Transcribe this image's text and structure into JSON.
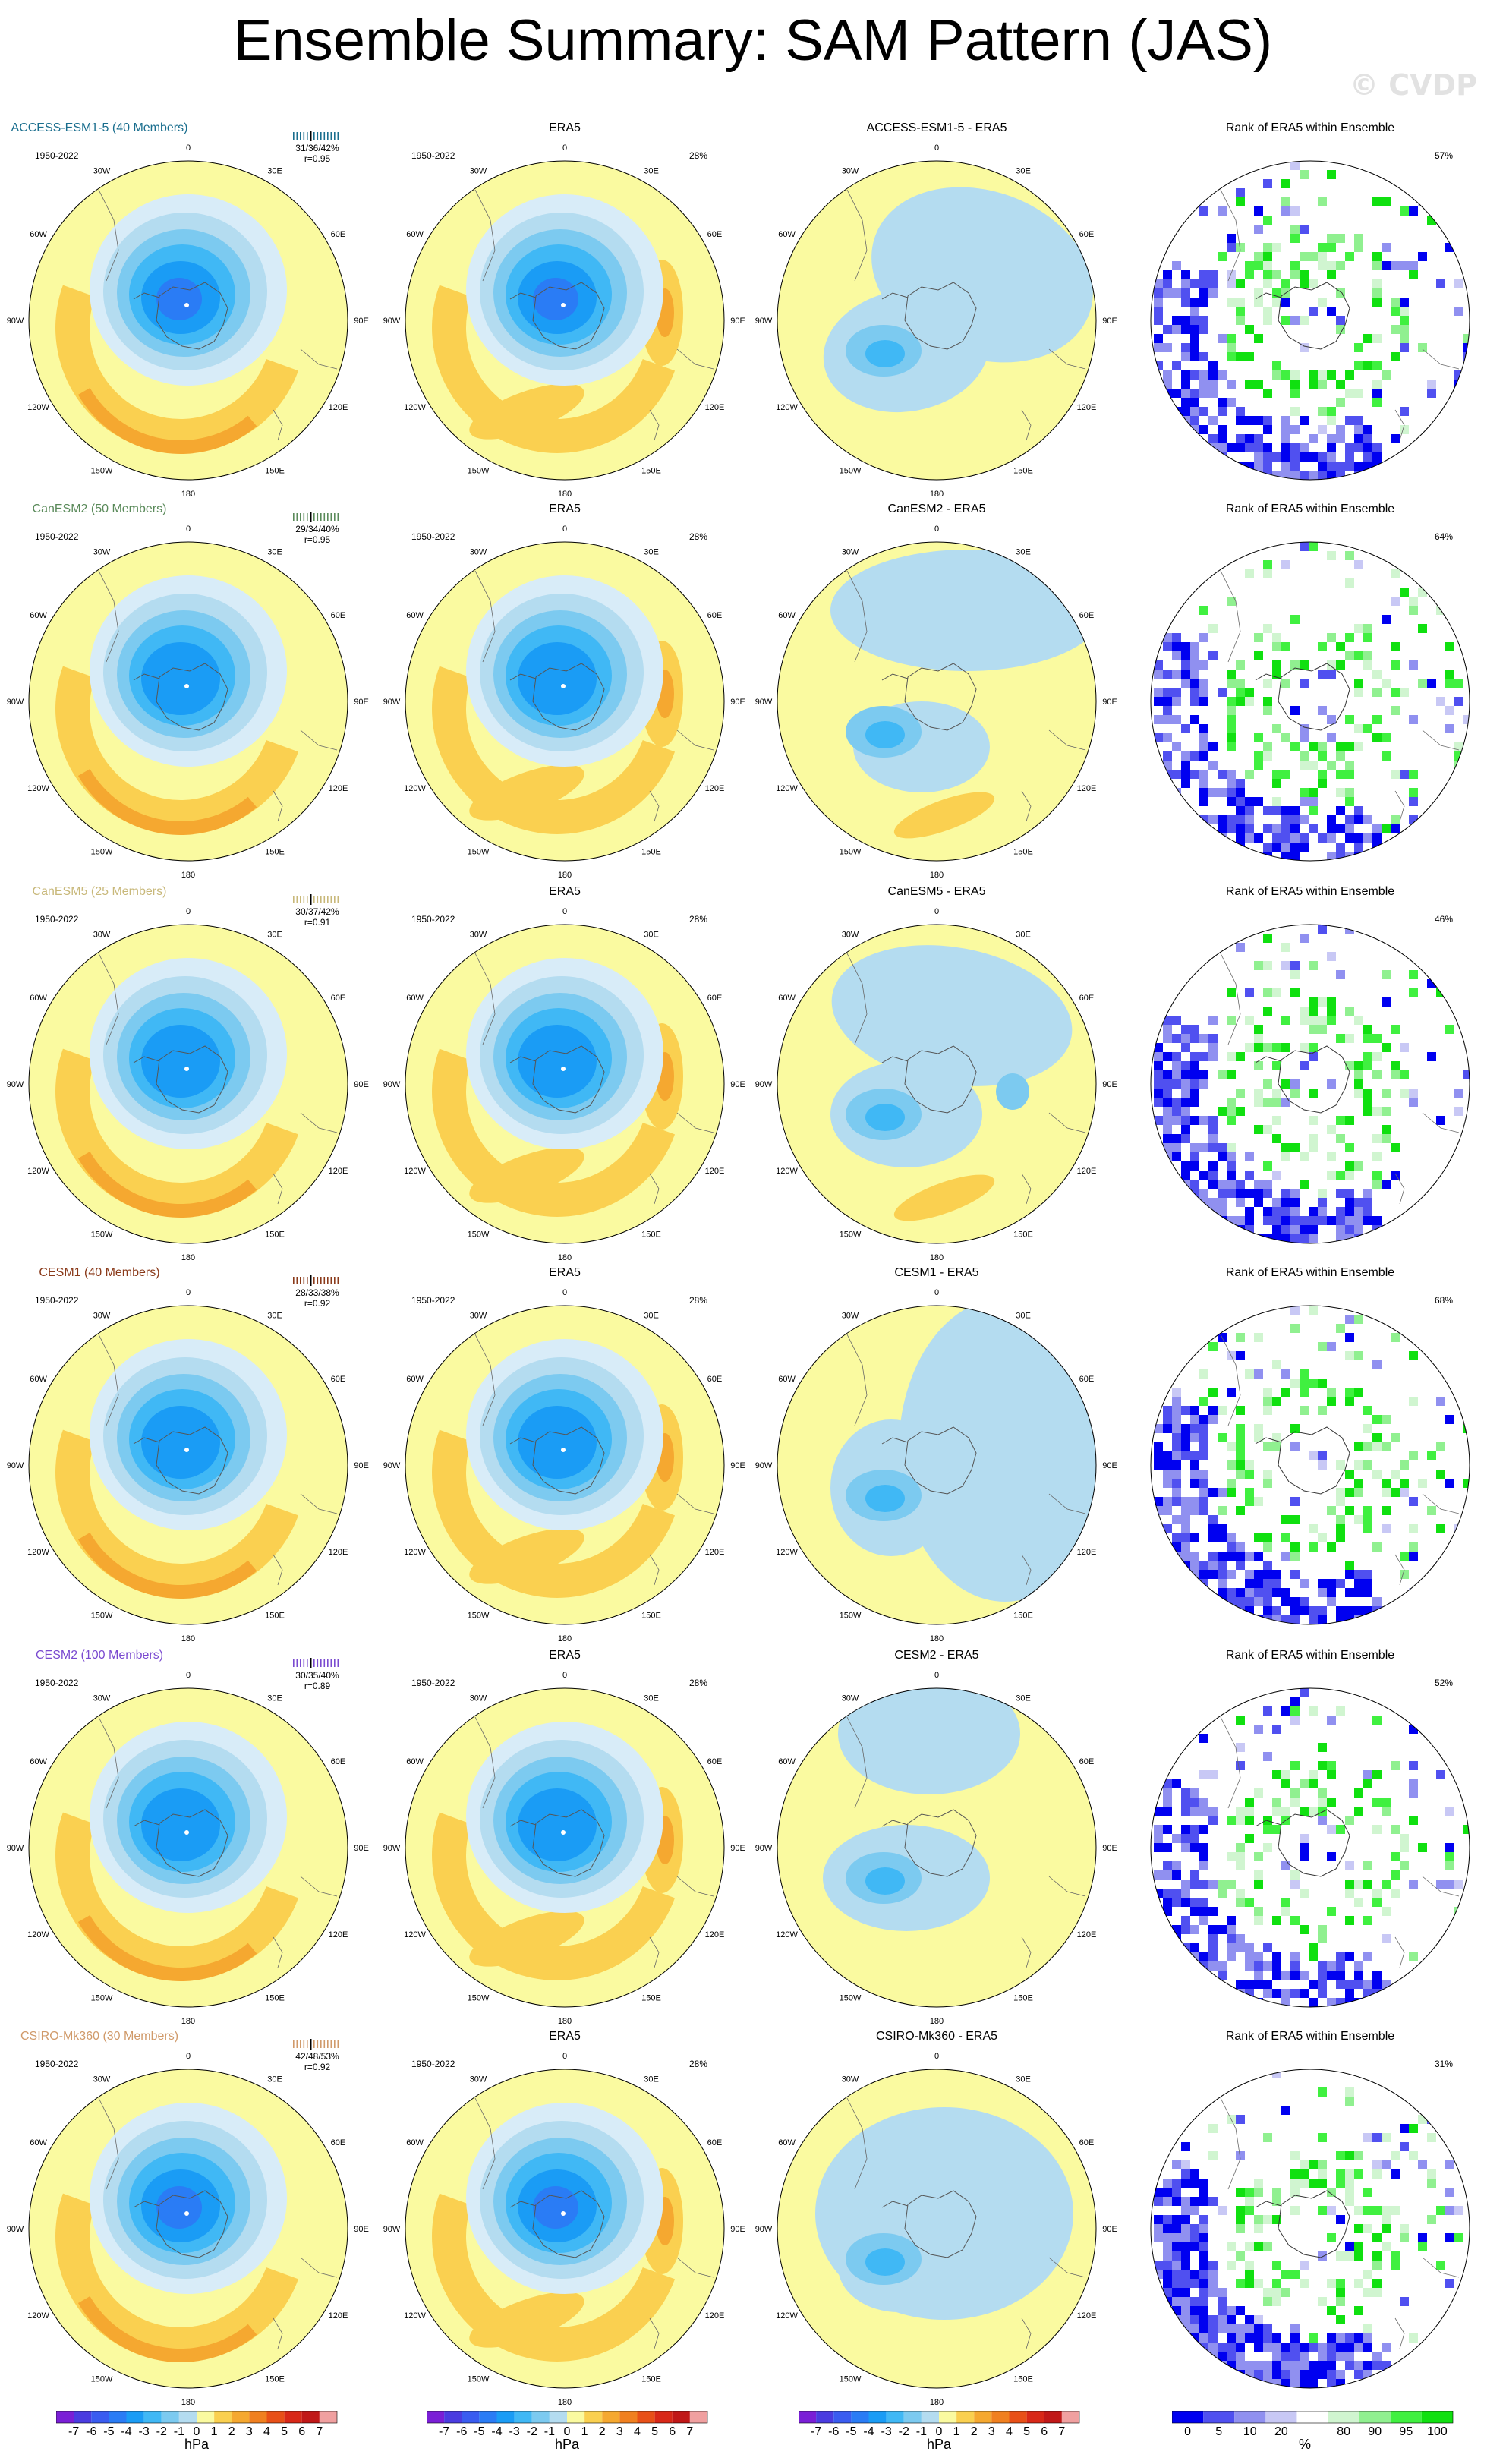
{
  "title": "Ensemble Summary: SAM Pattern (JAS)",
  "watermark": "© CVDP",
  "years": "1950-2022",
  "obs_label": "ERA5",
  "rank_label": "Rank of ERA5 within Ensemble",
  "lon_labels": [
    "0",
    "30E",
    "60E",
    "90E",
    "120E",
    "150E",
    "180",
    "150W",
    "120W",
    "90W",
    "60W",
    "30W"
  ],
  "rows": [
    {
      "model": "ACCESS-ESM1-5 (40 Members)",
      "model_color": "#1a6e8e",
      "diff": "ACCESS-ESM1-5 - ERA5",
      "stats": "31/36/42%",
      "r": "r=0.95",
      "obs_pct": "28%",
      "rank_pct": "57%",
      "lowAnom": -6,
      "highAnom": 3
    },
    {
      "model": "CanESM2 (50 Members)",
      "model_color": "#5a8a5a",
      "diff": "CanESM2 - ERA5",
      "stats": "29/34/40%",
      "r": "r=0.95",
      "obs_pct": "28%",
      "rank_pct": "64%",
      "lowAnom": -5,
      "highAnom": 3
    },
    {
      "model": "CanESM5 (25 Members)",
      "model_color": "#c8b87a",
      "diff": "CanESM5 - ERA5",
      "stats": "30/37/42%",
      "r": "r=0.91",
      "obs_pct": "28%",
      "rank_pct": "46%",
      "lowAnom": -5,
      "highAnom": 3
    },
    {
      "model": "CESM1 (40 Members)",
      "model_color": "#8a3a1a",
      "diff": "CESM1 - ERA5",
      "stats": "28/33/38%",
      "r": "r=0.92",
      "obs_pct": "28%",
      "rank_pct": "68%",
      "lowAnom": -5,
      "highAnom": 2
    },
    {
      "model": "CESM2 (100 Members)",
      "model_color": "#7a4ad0",
      "diff": "CESM2 - ERA5",
      "stats": "30/35/40%",
      "r": "r=0.89",
      "obs_pct": "28%",
      "rank_pct": "52%",
      "lowAnom": -5,
      "highAnom": 3
    },
    {
      "model": "CSIRO-Mk360 (30 Members)",
      "model_color": "#d09a6a",
      "diff": "CSIRO-Mk360 - ERA5",
      "stats": "42/48/53%",
      "r": "r=0.92",
      "obs_pct": "28%",
      "rank_pct": "31%",
      "lowAnom": -6,
      "highAnom": 2
    }
  ],
  "colorbar": {
    "labels": [
      "-7",
      "-6",
      "-5",
      "-4",
      "-3",
      "-2",
      "-1",
      "0",
      "1",
      "2",
      "3",
      "4",
      "5",
      "6",
      "7"
    ],
    "unit": "hPa",
    "colors": [
      "#7a1fd6",
      "#4a3ce0",
      "#3a5cf0",
      "#2a7cf5",
      "#1a9cf5",
      "#40b8f5",
      "#7ccaf0",
      "#b4dcf0",
      "#fafaa0",
      "#fad050",
      "#f5a830",
      "#f08020",
      "#e85018",
      "#d82818",
      "#c01818",
      "#f0a0a0"
    ]
  },
  "rank_colorbar": {
    "labels": [
      "0",
      "5",
      "10",
      "20",
      "80",
      "90",
      "95",
      "100"
    ],
    "unit": "%",
    "colors": [
      "#0000f0",
      "#5050f0",
      "#9090f0",
      "#c8c8f5",
      "#ffffff",
      "#d0f5d0",
      "#90f090",
      "#40f040",
      "#10e010"
    ]
  }
}
